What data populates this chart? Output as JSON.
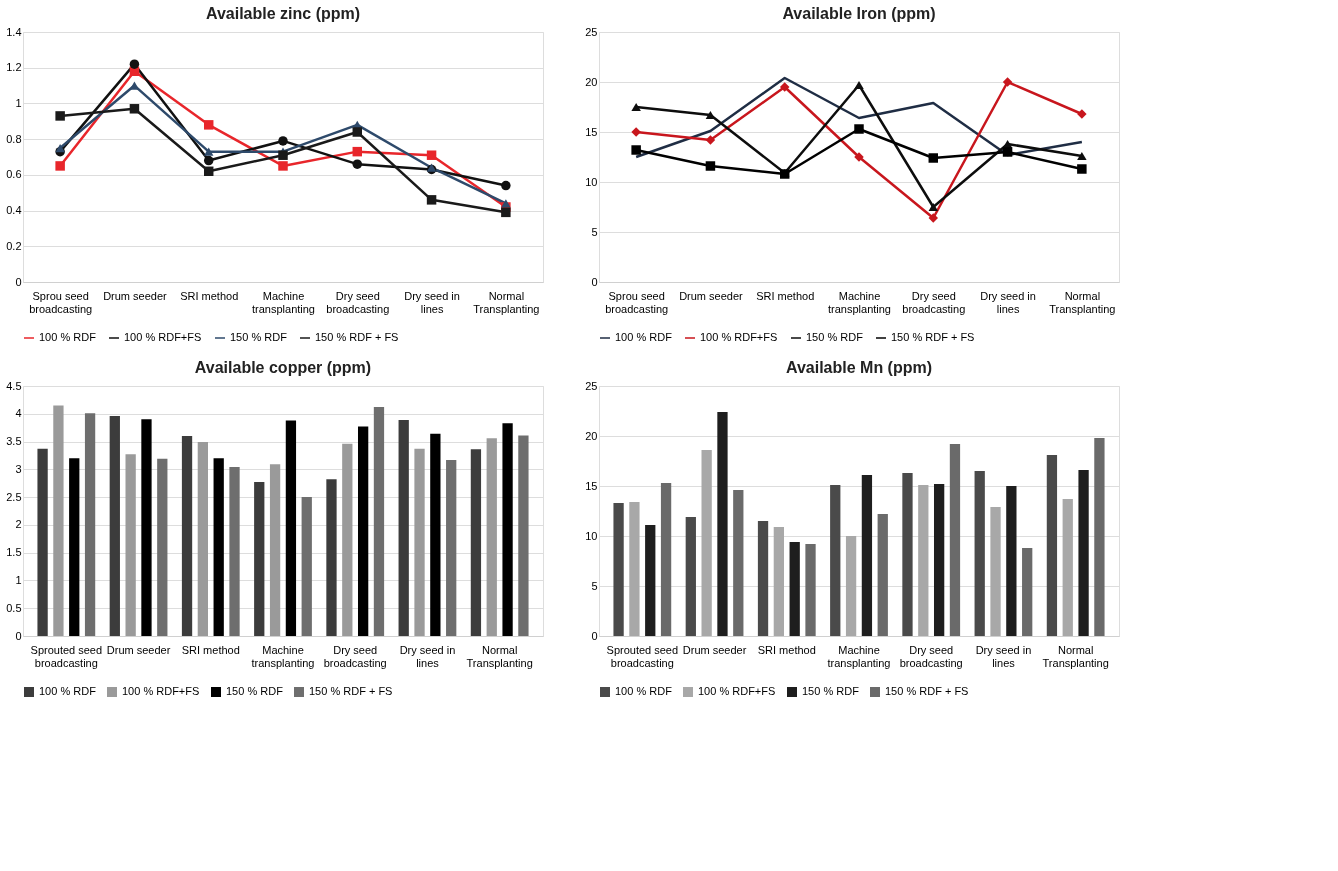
{
  "chart_data": [
    {
      "type": "line",
      "title": "Available zinc (ppm)",
      "categories": [
        "Sprou seed  broadcasting",
        "Drum seeder",
        "SRI method",
        "Machine  transplanting",
        "Dry seed broadcasting",
        "Dry seed in lines",
        "Normal Transplanting"
      ],
      "ylim": [
        0,
        1.4
      ],
      "yticks": [
        0,
        0.2,
        0.4,
        0.6,
        0.8,
        1,
        1.2,
        1.4
      ],
      "grid": "y",
      "legend": "bottom",
      "series": [
        {
          "name": "100 % RDF",
          "color": "#e8262b",
          "marker": "square",
          "values": [
            0.65,
            1.18,
            0.88,
            0.65,
            0.73,
            0.71,
            0.42
          ]
        },
        {
          "name": "100 % RDF+FS",
          "color": "#111111",
          "marker": "circle",
          "values": [
            0.73,
            1.22,
            0.68,
            0.79,
            0.66,
            0.63,
            0.54
          ]
        },
        {
          "name": "150 % RDF",
          "color": "#2e4a6b",
          "marker": "triangle",
          "values": [
            0.75,
            1.1,
            0.73,
            0.73,
            0.88,
            0.64,
            0.44
          ]
        },
        {
          "name": "150 % RDF + FS",
          "color": "#1a1a1a",
          "marker": "square",
          "values": [
            0.93,
            0.97,
            0.62,
            0.71,
            0.84,
            0.46,
            0.39
          ]
        }
      ]
    },
    {
      "type": "line",
      "title": "Available Iron (ppm)",
      "categories": [
        "Sprou seed broadcasting",
        "Drum seeder",
        "SRI method",
        "Machine transplanting",
        "Dry seed broadcasting",
        "Dry seed in lines",
        "Normal Transplanting"
      ],
      "ylim": [
        0,
        25
      ],
      "yticks": [
        0,
        5,
        10,
        15,
        20,
        25
      ],
      "grid": "y",
      "legend": "bottom",
      "series": [
        {
          "name": "100 % RDF",
          "color": "#1f2d44",
          "marker": "none",
          "values": [
            12.5,
            15.1,
            20.4,
            16.4,
            17.9,
            12.7,
            14.0
          ]
        },
        {
          "name": "100 % RDF+FS",
          "color": "#c8161d",
          "marker": "diamond",
          "values": [
            15.0,
            14.2,
            19.5,
            12.5,
            6.4,
            20.0,
            16.8
          ]
        },
        {
          "name": "150 % RDF",
          "color": "#0d0d0d",
          "marker": "triangle",
          "values": [
            17.5,
            16.7,
            10.9,
            19.7,
            7.5,
            13.8,
            12.6
          ]
        },
        {
          "name": "150 % RDF + FS",
          "color": "#000000",
          "marker": "square",
          "values": [
            13.2,
            11.6,
            10.8,
            15.3,
            12.4,
            13.0,
            11.3
          ]
        }
      ]
    },
    {
      "type": "bar",
      "title": "Available copper (ppm)",
      "categories": [
        "Sprouted seed broadcasting",
        "Drum seeder",
        "SRI method",
        "Machine transplanting",
        "Dry seed broadcasting",
        "Dry seed in lines",
        "Normal Transplanting"
      ],
      "ylim": [
        0,
        4.5
      ],
      "yticks": [
        0,
        0.5,
        1,
        1.5,
        2,
        2.5,
        3,
        3.5,
        4,
        4.5
      ],
      "grid": "y",
      "legend": "bottom",
      "series": [
        {
          "name": "100 % RDF",
          "color": "#3c3c3c",
          "values": [
            3.37,
            3.96,
            3.6,
            2.77,
            2.82,
            3.89,
            3.36
          ]
        },
        {
          "name": "100 % RDF+FS",
          "color": "#9a9a9a",
          "values": [
            4.15,
            3.27,
            3.49,
            3.09,
            3.46,
            3.37,
            3.56
          ]
        },
        {
          "name": "150 % RDF",
          "color": "#000000",
          "values": [
            3.2,
            3.9,
            3.2,
            3.88,
            3.77,
            3.64,
            3.83
          ]
        },
        {
          "name": "150 % RDF + FS",
          "color": "#6e6e6e",
          "values": [
            4.01,
            3.19,
            3.04,
            2.5,
            4.12,
            3.17,
            3.61
          ]
        }
      ]
    },
    {
      "type": "bar",
      "title": "Available Mn (ppm)",
      "categories": [
        "Sprouted seed broadcasting",
        "Drum seeder",
        "SRI method",
        "Machine transplanting",
        "Dry seed broadcasting",
        "Dry seed in lines",
        "Normal Transplanting"
      ],
      "ylim": [
        0,
        25
      ],
      "yticks": [
        0,
        5,
        10,
        15,
        20,
        25
      ],
      "grid": "y",
      "legend": "bottom",
      "series": [
        {
          "name": "100 % RDF",
          "color": "#4a4a4a",
          "values": [
            13.3,
            11.9,
            11.5,
            15.1,
            16.3,
            16.5,
            18.1
          ]
        },
        {
          "name": "100 % RDF+FS",
          "color": "#a8a8a8",
          "values": [
            13.4,
            18.6,
            10.9,
            10.0,
            15.1,
            12.9,
            13.7
          ]
        },
        {
          "name": "150 % RDF",
          "color": "#1e1e1e",
          "values": [
            11.1,
            22.4,
            9.4,
            16.1,
            15.2,
            15.0,
            16.6
          ]
        },
        {
          "name": "150 % RDF + FS",
          "color": "#6a6a6a",
          "values": [
            15.3,
            14.6,
            9.2,
            12.2,
            19.2,
            8.8,
            19.8
          ]
        }
      ]
    }
  ]
}
